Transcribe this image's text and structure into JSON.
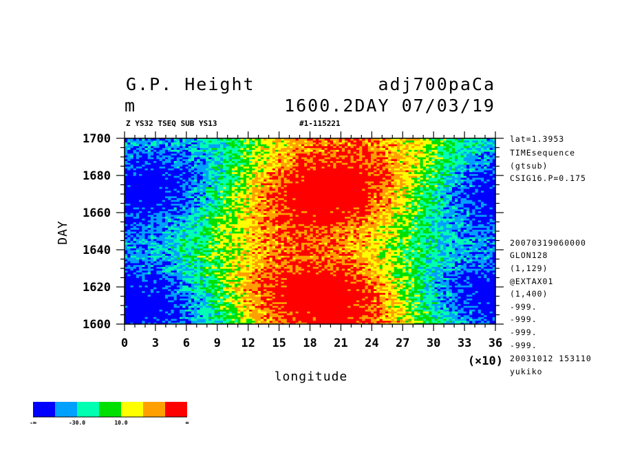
{
  "chart_data": {
    "type": "heatmap",
    "title": "G.P. Height",
    "title_right": "adj700paCa",
    "unit": "m",
    "time_label": "1600.2DAY 07/03/19",
    "subtitle_left": "Z YS32 TSEQ SUB YS13",
    "subtitle_right": "#1-115221",
    "xlabel": "longitude",
    "ylabel": "DAY",
    "x_multiplier": "(×10)",
    "xlim": [
      0,
      36
    ],
    "ylim": [
      1600,
      1700
    ],
    "x_ticks": [
      "0",
      "3",
      "6",
      "9",
      "12",
      "15",
      "18",
      "21",
      "24",
      "27",
      "30",
      "33",
      "36"
    ],
    "y_ticks": [
      "1600",
      "1620",
      "1640",
      "1660",
      "1680",
      "1700"
    ],
    "color_levels": [
      "-∞",
      "",
      "-30.0",
      "",
      "10.0",
      "",
      "∞"
    ],
    "colors": [
      "#0000ff",
      "#00a0ff",
      "#00ffb0",
      "#00e000",
      "#ffff00",
      "#ffa000",
      "#ff0000"
    ],
    "structure": {
      "description_values": "zonal wavenumber-1 pattern: low (blue) near longitude 40-70 and 340-360, high (red) near longitude 170-240",
      "high_center_lon": 200,
      "low_center_lon": 40
    }
  },
  "info_right": {
    "top": [
      "lat=1.3953",
      "TIMEsequence",
      "(gtsub)",
      "CSIG16.P=0.175"
    ],
    "bottom": [
      "20070319060000",
      "GLON128",
      "(1,129)",
      "@EXTAX01",
      "(1,400)",
      "-999.",
      "-999.",
      "-999.",
      "-999.",
      "20031012 153110",
      "yukiko"
    ]
  }
}
